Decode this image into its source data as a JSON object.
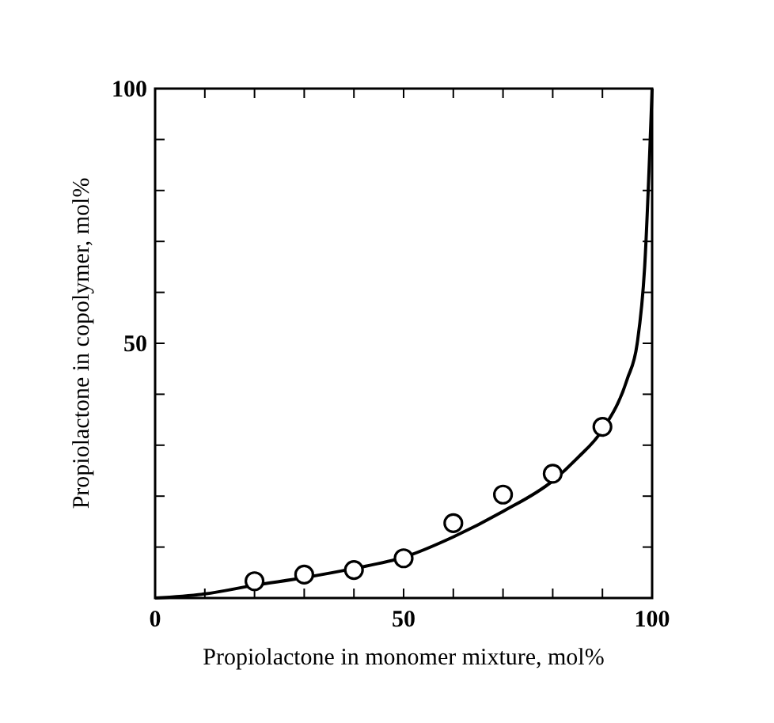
{
  "chart_data": {
    "type": "scatter",
    "xlabel": "Propiolactone in monomer mixture, mol%",
    "ylabel": "Propiolactone in copolymer, mol%",
    "xlim": [
      0,
      100
    ],
    "ylim": [
      0,
      100
    ],
    "xticks": [
      0,
      {
        "value": 10,
        "label": null
      },
      {
        "value": 20,
        "label": null
      },
      {
        "value": 30,
        "label": null
      },
      {
        "value": 40,
        "label": null
      },
      50,
      {
        "value": 60,
        "label": null
      },
      {
        "value": 70,
        "label": null
      },
      {
        "value": 80,
        "label": null
      },
      {
        "value": 90,
        "label": null
      },
      100
    ],
    "yticks": [
      {
        "value": 10,
        "label": null
      },
      {
        "value": 20,
        "label": null
      },
      {
        "value": 30,
        "label": null
      },
      {
        "value": 40,
        "label": null
      },
      50,
      {
        "value": 60,
        "label": null
      },
      {
        "value": 70,
        "label": null
      },
      {
        "value": 80,
        "label": null
      },
      {
        "value": 90,
        "label": null
      },
      100
    ],
    "series": [
      {
        "color": "#000000",
        "marker": "circle",
        "x": [
          20,
          30,
          40,
          50,
          60,
          70,
          80,
          90
        ],
        "values": [
          3.3,
          4.6,
          5.5,
          7.8,
          14.7,
          20.3,
          24.4,
          33.6
        ]
      },
      {
        "type": "line",
        "color": "#000000",
        "line_style": "solid",
        "x": [
          0,
          10,
          20,
          30,
          40,
          50,
          60,
          70,
          80,
          85,
          90,
          95,
          97,
          98.5,
          100
        ],
        "values": [
          0,
          0.8,
          2.5,
          4,
          5.8,
          8,
          12,
          17,
          23,
          27.5,
          33,
          43,
          50,
          65,
          100
        ]
      }
    ]
  }
}
